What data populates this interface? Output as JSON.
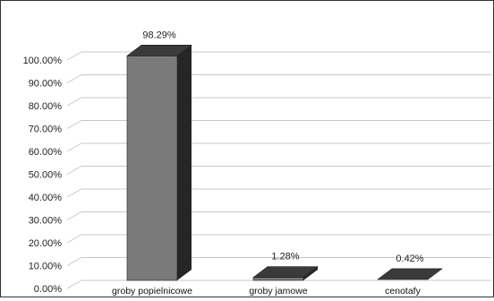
{
  "chart_data": {
    "type": "bar",
    "categories": [
      "groby popielnicowe",
      "groby jamowe",
      "cenotafy"
    ],
    "values": [
      98.29,
      1.28,
      0.42
    ],
    "data_labels": [
      "98.29%",
      "1.28%",
      "0.42%"
    ],
    "ylim": [
      0,
      100
    ],
    "yticks": [
      0,
      10,
      20,
      30,
      40,
      50,
      60,
      70,
      80,
      90,
      100
    ],
    "ytick_labels": [
      "0.00%",
      "10.00%",
      "20.00%",
      "30.00%",
      "40.00%",
      "50.00%",
      "60.00%",
      "70.00%",
      "80.00%",
      "90.00%",
      "100.00%"
    ],
    "grid": true,
    "style": "3d-column",
    "colors": {
      "front": "#7a7a7a",
      "side": "#262626",
      "top": "#3a3a3a",
      "grid": "#c8c8c8"
    }
  }
}
